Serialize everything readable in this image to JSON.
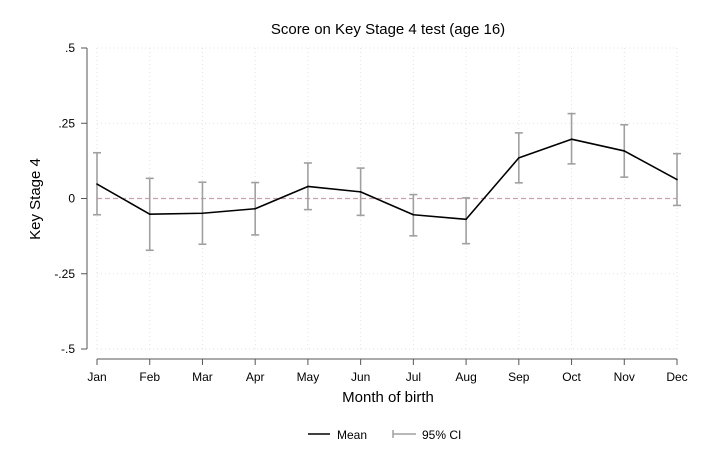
{
  "chart_data": {
    "type": "line",
    "title": "Score on Key Stage 4 test (age 16)",
    "xlabel": "Month of birth",
    "ylabel": "Key Stage 4",
    "categories": [
      "Jan",
      "Feb",
      "Mar",
      "Apr",
      "May",
      "Jun",
      "Jul",
      "Aug",
      "Sep",
      "Oct",
      "Nov",
      "Dec"
    ],
    "ylim": [
      -0.5,
      0.5
    ],
    "yticks": [
      0.5,
      0.25,
      0,
      -0.25,
      -0.5
    ],
    "ytick_labels": [
      ".5",
      ".25",
      "0",
      "-.25",
      "-.5"
    ],
    "reference_line": 0,
    "grid": true,
    "legend_position": "bottom",
    "series": [
      {
        "name": "Mean",
        "values": [
          0.048,
          -0.052,
          -0.049,
          -0.034,
          0.04,
          0.022,
          -0.054,
          -0.069,
          0.135,
          0.197,
          0.158,
          0.063
        ]
      }
    ],
    "ci": {
      "name": "95% CI",
      "lower": [
        -0.054,
        -0.172,
        -0.152,
        -0.121,
        -0.037,
        -0.056,
        -0.124,
        -0.15,
        0.052,
        0.115,
        0.071,
        -0.023
      ],
      "upper": [
        0.152,
        0.067,
        0.054,
        0.053,
        0.118,
        0.101,
        0.013,
        0.002,
        0.218,
        0.282,
        0.245,
        0.149
      ]
    },
    "colors": {
      "mean_line": "#000000",
      "ci_bars": "#a0a0a0",
      "reference_line": "#c8a0a8",
      "grid": "#e2e2e2",
      "axis": "#555555"
    }
  }
}
